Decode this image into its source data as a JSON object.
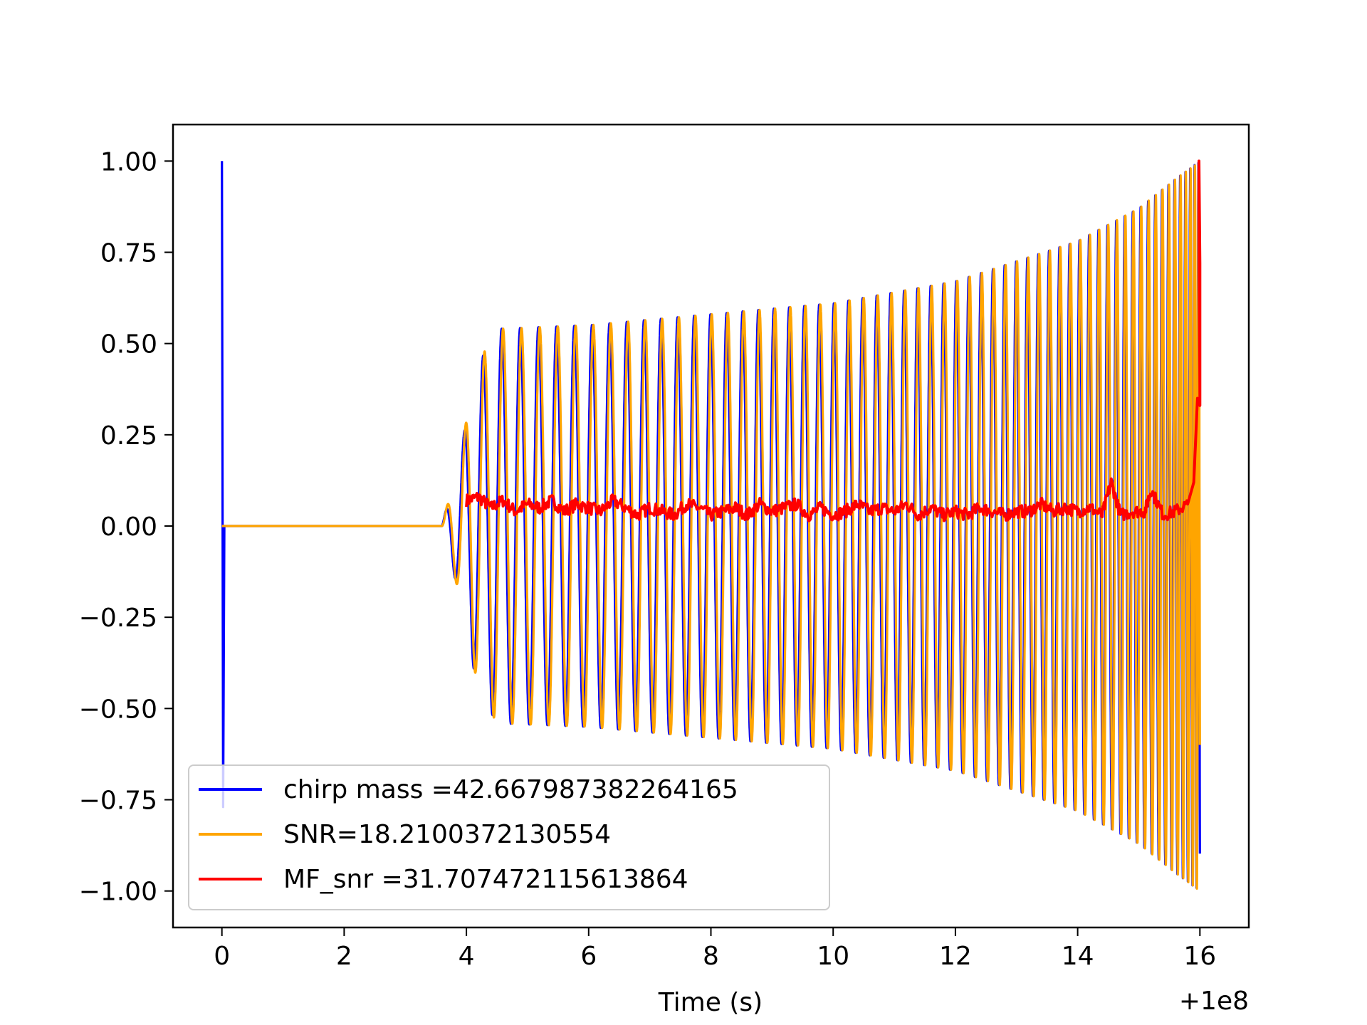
{
  "chart_data": {
    "type": "line",
    "title": "",
    "xlabel": "Time (s)",
    "ylabel": "",
    "x_offset_label": "+1e8",
    "xlim": [
      -0.8,
      16.8
    ],
    "ylim": [
      -1.1,
      1.1
    ],
    "xticks": [
      0,
      2,
      4,
      6,
      8,
      10,
      12,
      14,
      16
    ],
    "xtick_labels": [
      "0",
      "2",
      "4",
      "6",
      "8",
      "10",
      "12",
      "14",
      "16"
    ],
    "yticks": [
      1.0,
      0.75,
      0.5,
      0.25,
      0.0,
      -0.25,
      -0.5,
      -0.75,
      -1.0
    ],
    "ytick_labels": [
      "1.00",
      "0.75",
      "0.50",
      "0.25",
      "0.00",
      "−0.25",
      "−0.50",
      "−0.75",
      "−1.00"
    ],
    "grid": false,
    "legend_position": "lower-left",
    "series": [
      {
        "name": "chirp mass =42.667987382264165",
        "color": "#0000ff",
        "description_points": {
          "spike_x": 0.0,
          "spike_range": [
            -0.77,
            1.0
          ],
          "quiet_until": 3.6,
          "envelope": [
            [
              3.6,
              0.0
            ],
            [
              3.9,
              0.2
            ],
            [
              4.1,
              0.38
            ],
            [
              4.3,
              0.48
            ],
            [
              4.5,
              0.54
            ],
            [
              6,
              0.55
            ],
            [
              8,
              0.58
            ],
            [
              10,
              0.61
            ],
            [
              12,
              0.67
            ],
            [
              14,
              0.78
            ],
            [
              15,
              0.87
            ],
            [
              15.6,
              0.95
            ],
            [
              16.0,
              1.0
            ]
          ],
          "end_x": 16.0
        }
      },
      {
        "name": "SNR=18.2100372130554",
        "color": "#ffa500",
        "description_points": {
          "flat_from": 0.0,
          "quiet_until": 3.6,
          "envelope": [
            [
              3.6,
              0.0
            ],
            [
              3.9,
              0.2
            ],
            [
              4.1,
              0.38
            ],
            [
              4.3,
              0.48
            ],
            [
              4.5,
              0.54
            ],
            [
              6,
              0.55
            ],
            [
              8,
              0.58
            ],
            [
              10,
              0.61
            ],
            [
              12,
              0.67
            ],
            [
              14,
              0.78
            ],
            [
              15,
              0.87
            ],
            [
              15.6,
              0.95
            ],
            [
              16.0,
              1.0
            ]
          ],
          "end_x": 16.0
        }
      },
      {
        "name": "MF_snr =31.707472115613864",
        "color": "#ff0000",
        "description_points": {
          "start_x": 4.0,
          "x": [
            4.0,
            4.2,
            4.4,
            4.6,
            4.8,
            5.0,
            5.2,
            5.4,
            5.6,
            5.8,
            6.0,
            6.2,
            6.4,
            6.6,
            6.8,
            7.0,
            7.2,
            7.4,
            7.6,
            7.8,
            8.0,
            8.2,
            8.4,
            8.6,
            8.8,
            9.0,
            9.2,
            9.4,
            9.6,
            9.8,
            10.0,
            10.2,
            10.4,
            10.6,
            10.8,
            11.0,
            11.2,
            11.4,
            11.6,
            11.8,
            12.0,
            12.2,
            12.4,
            12.6,
            12.8,
            13.0,
            13.2,
            13.4,
            13.6,
            13.8,
            14.0,
            14.2,
            14.4,
            14.55,
            14.7,
            14.9,
            15.1,
            15.2,
            15.4,
            15.6,
            15.8,
            15.9,
            15.96,
            16.0
          ],
          "y": [
            0.07,
            0.08,
            0.05,
            0.07,
            0.04,
            0.06,
            0.05,
            0.07,
            0.04,
            0.06,
            0.05,
            0.04,
            0.07,
            0.05,
            0.03,
            0.05,
            0.04,
            0.03,
            0.06,
            0.05,
            0.03,
            0.04,
            0.05,
            0.03,
            0.06,
            0.04,
            0.05,
            0.06,
            0.03,
            0.05,
            0.03,
            0.04,
            0.06,
            0.04,
            0.05,
            0.04,
            0.06,
            0.03,
            0.05,
            0.03,
            0.04,
            0.03,
            0.05,
            0.04,
            0.03,
            0.04,
            0.04,
            0.06,
            0.04,
            0.05,
            0.04,
            0.05,
            0.03,
            0.12,
            0.03,
            0.04,
            0.04,
            0.1,
            0.03,
            0.04,
            0.06,
            0.12,
            0.35,
            0.33
          ]
        }
      }
    ]
  }
}
